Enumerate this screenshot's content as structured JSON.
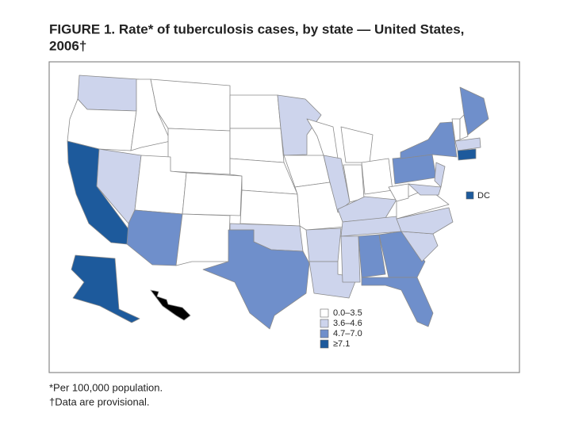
{
  "figure": {
    "title": [
      "FIGURE 1. Rate* of tuberculosis cases, by state — United States,",
      "2006†"
    ],
    "legend": [
      {
        "label": "0.0–3.5",
        "color": "#ffffff"
      },
      {
        "label": "3.6–4.6",
        "color": "#cdd4ec"
      },
      {
        "label": "4.7–7.0",
        "color": "#6f8fcb"
      },
      {
        "label": "≥7.1",
        "color": "#1d5a9c"
      }
    ],
    "dc": {
      "label": "DC",
      "color": "#1d5a9c"
    },
    "region_fills": [
      "#cdd4ec",
      "#ffffff",
      "#1d5a9c",
      "#cdd4ec",
      "#ffffff",
      "#ffffff",
      "#ffffff",
      "#ffffff",
      "#6f8fcb",
      "#ffffff",
      "#ffffff",
      "#ffffff",
      "#ffffff",
      "#ffffff",
      "#ffffff",
      "#cdd4ec",
      "#6f8fcb",
      "#cdd4ec",
      "#ffffff",
      "#ffffff",
      "#cdd4ec",
      "#cdd4ec",
      "#ffffff",
      "#cdd4ec",
      "#ffffff",
      "#ffffff",
      "#ffffff",
      "#cdd4ec",
      "#cdd4ec",
      "#cdd4ec",
      "#6f8fcb",
      "#6f8fcb",
      "#6f8fcb",
      "#cdd4ec",
      "#cdd4ec",
      "#ffffff",
      "#ffffff",
      "#6f8fcb",
      "#6f8fcb",
      "#cdd4ec",
      "#cdd4ec",
      "#ffffff",
      "#ffffff",
      "#6f8fcb",
      "#cdd4ec",
      "#1d5a9c",
      "#1d5a9c"
    ],
    "footnotes": [
      "*Per 100,000 population.",
      "†Data are provisional."
    ]
  }
}
